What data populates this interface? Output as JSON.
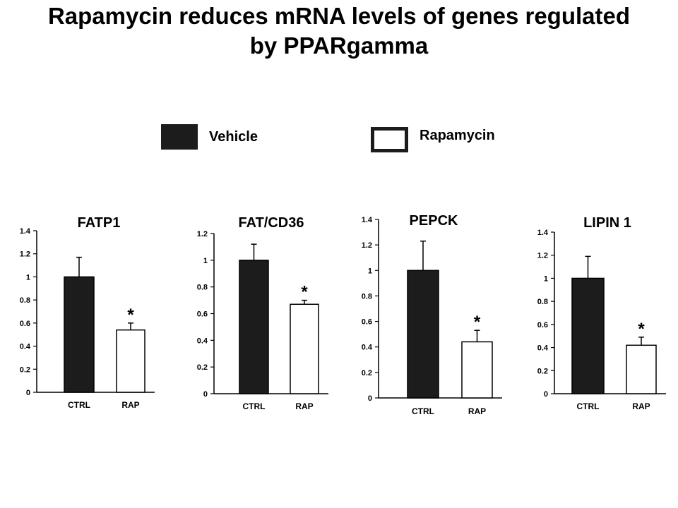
{
  "title": {
    "line1": "Rapamycin reduces mRNA levels of genes regulated",
    "line2": "by PPARgamma"
  },
  "legend": [
    {
      "label": "Vehicle",
      "color": "#1c1c1c",
      "filled": true
    },
    {
      "label": "Rapamycin",
      "color": "#ffffff",
      "filled": false
    }
  ],
  "chart_data": [
    {
      "type": "bar",
      "title": "FATP1",
      "categories": [
        "CTRL",
        "RAP"
      ],
      "series": [
        {
          "values": [
            1.0,
            0.54
          ],
          "errors": [
            0.17,
            0.06
          ],
          "colors": [
            "#1c1c1c",
            "#ffffff"
          ]
        }
      ],
      "significance": [
        "",
        "*"
      ],
      "ylim": [
        0,
        1.4
      ],
      "yticks": [
        "0",
        "0.2",
        "0.4",
        "0.6",
        "0.8",
        "1",
        "1.2",
        "1.4"
      ]
    },
    {
      "type": "bar",
      "title": "FAT/CD36",
      "categories": [
        "CTRL",
        "RAP"
      ],
      "series": [
        {
          "values": [
            1.0,
            0.67
          ],
          "errors": [
            0.12,
            0.03
          ],
          "colors": [
            "#1c1c1c",
            "#ffffff"
          ]
        }
      ],
      "significance": [
        "",
        "*"
      ],
      "ylim": [
        0,
        1.2
      ],
      "yticks": [
        "0",
        "0.2",
        "0.4",
        "0.6",
        "0.8",
        "1",
        "1.2"
      ]
    },
    {
      "type": "bar",
      "title": "PEPCK",
      "categories": [
        "CTRL",
        "RAP"
      ],
      "series": [
        {
          "values": [
            1.0,
            0.44
          ],
          "errors": [
            0.23,
            0.09
          ],
          "colors": [
            "#1c1c1c",
            "#ffffff"
          ]
        }
      ],
      "significance": [
        "",
        "*"
      ],
      "ylim": [
        0,
        1.4
      ],
      "yticks": [
        "0",
        "0.2",
        "0.4",
        "0.6",
        "0.8",
        "1",
        "1.2",
        "1.4"
      ]
    },
    {
      "type": "bar",
      "title": "LIPIN 1",
      "categories": [
        "CTRL",
        "RAP"
      ],
      "series": [
        {
          "values": [
            1.0,
            0.42
          ],
          "errors": [
            0.19,
            0.07
          ],
          "colors": [
            "#1c1c1c",
            "#ffffff"
          ]
        }
      ],
      "significance": [
        "",
        "*"
      ],
      "ylim": [
        0,
        1.4
      ],
      "yticks": [
        "0",
        "0.2",
        "0.4",
        "0.6",
        "0.8",
        "1",
        "1.2",
        "1.4"
      ]
    }
  ]
}
